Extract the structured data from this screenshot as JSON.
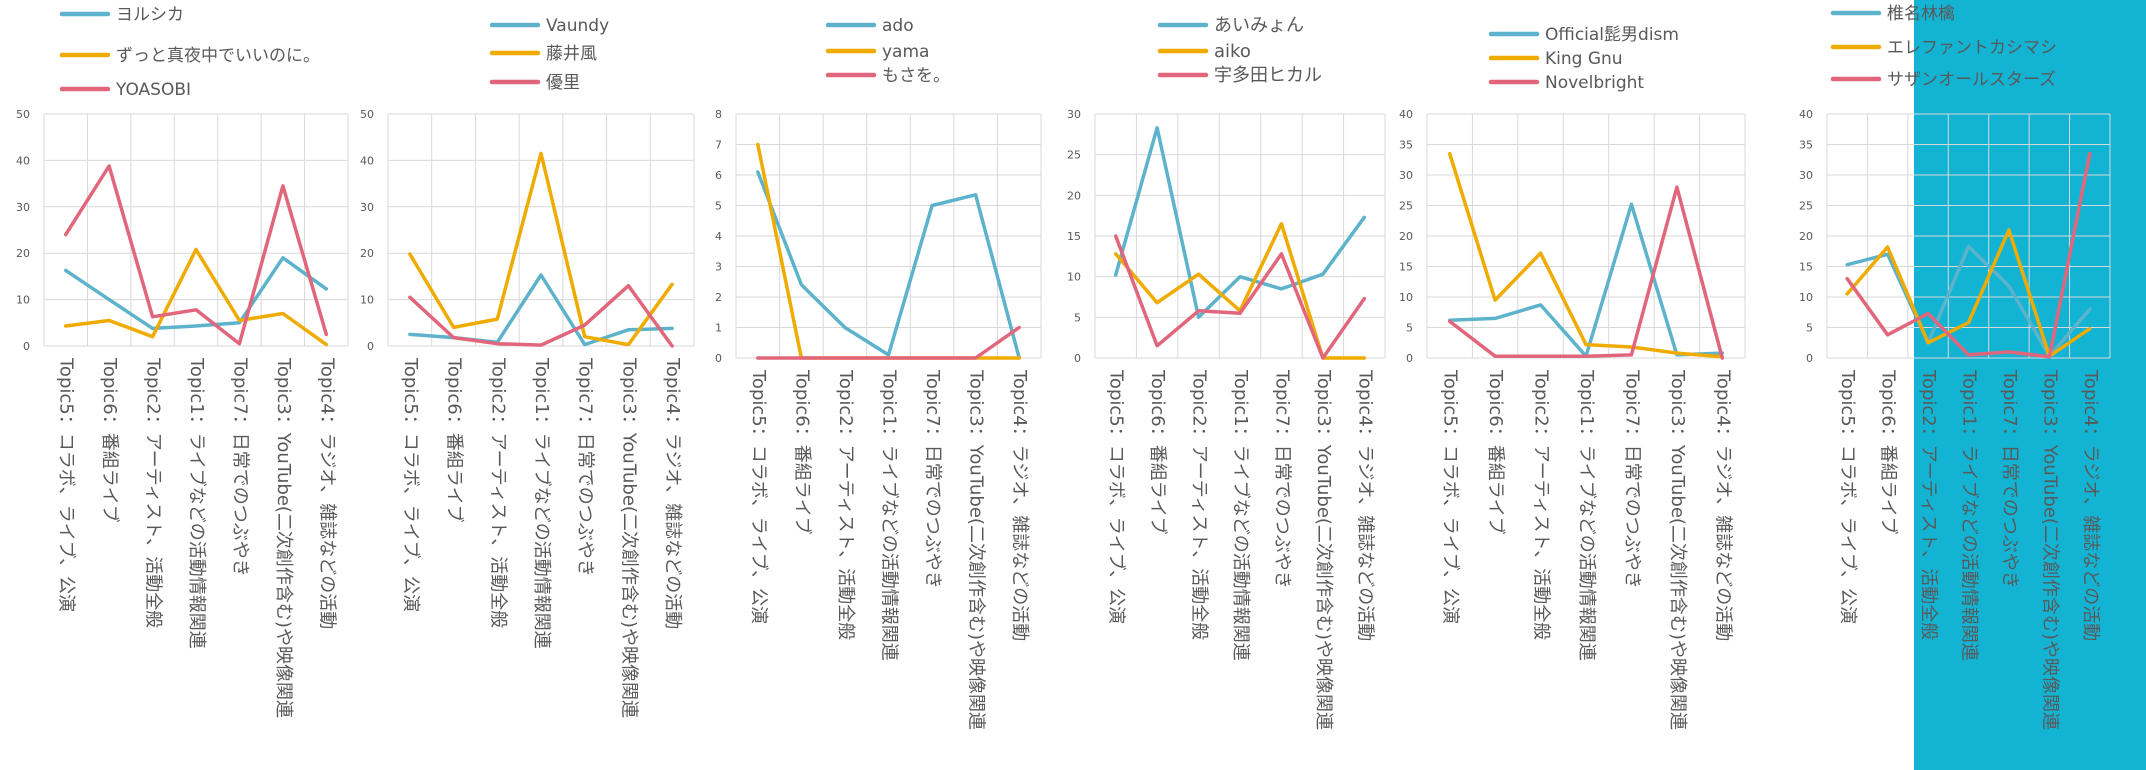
{
  "colors": {
    "blue": "#5cb3cb",
    "orange": "#f0ab00",
    "pink": "#e2667b",
    "grid": "#d9d9d9",
    "axis_text": "#595959",
    "legend_text": "#595959",
    "highlight": "#13b4d3"
  },
  "highlight": {
    "present": true,
    "color": "#13b4d3"
  },
  "chart_data": [
    {
      "type": "line",
      "categories": [
        "Topic5：コラボ、ライブ、公演",
        "Topic6：番組ライブ",
        "Topic2：アーティスト、活動全般",
        "Topic1：ライブなどの活動情報関連",
        "Topic7：日常でのつぶやき",
        "Topic3：YouTube(二次創作含む)や映像関連",
        "Topic4：ラジオ、雑誌などの活動"
      ],
      "ylim": [
        0,
        50
      ],
      "yticks": [
        "0",
        "10",
        "20",
        "30",
        "40",
        "50"
      ],
      "grid": true,
      "legend_position": "top",
      "series": [
        {
          "name": "ヨルシカ",
          "color": "blue",
          "values": [
            16.3,
            10,
            3.8,
            4.3,
            5,
            19,
            12.3
          ]
        },
        {
          "name": "ずっと真夜中でいいのに。",
          "color": "orange",
          "values": [
            4.3,
            5.5,
            2,
            20.8,
            5.5,
            7,
            0.3
          ]
        },
        {
          "name": "YOASOBI",
          "color": "pink",
          "values": [
            24,
            38.8,
            6.3,
            7.8,
            0.5,
            34.5,
            2.5
          ]
        }
      ]
    },
    {
      "type": "line",
      "categories": [
        "Topic5：コラボ、ライブ、公演",
        "Topic6：番組ライブ",
        "Topic2：アーティスト、活動全般",
        "Topic1：ライブなどの活動情報関連",
        "Topic7：日常でのつぶやき",
        "Topic3：YouTube(二次創作含む)や映像関連",
        "Topic4：ラジオ、雑誌などの活動"
      ],
      "ylim": [
        0,
        50
      ],
      "yticks": [
        "0",
        "10",
        "20",
        "30",
        "40",
        "50"
      ],
      "grid": true,
      "legend_position": "top",
      "series": [
        {
          "name": "Vaundy",
          "color": "blue",
          "values": [
            2.5,
            1.8,
            0.8,
            15.3,
            0.3,
            3.5,
            3.8
          ]
        },
        {
          "name": "藤井風",
          "color": "orange",
          "values": [
            19.8,
            4,
            5.8,
            41.5,
            2,
            0.3,
            13.3
          ]
        },
        {
          "name": "優里",
          "color": "pink",
          "values": [
            10.5,
            1.8,
            0.5,
            0.2,
            4.5,
            13,
            0
          ]
        }
      ]
    },
    {
      "type": "line",
      "categories": [
        "Topic5：コラボ、ライブ、公演",
        "Topic6：番組ライブ",
        "Topic2：アーティスト、活動全般",
        "Topic1：ライブなどの活動情報関連",
        "Topic7：日常でのつぶやき",
        "Topic3：YouTube(二次創作含む)や映像関連",
        "Topic4：ラジオ、雑誌などの活動"
      ],
      "ylim": [
        0,
        8
      ],
      "yticks": [
        "0",
        "1",
        "2",
        "3",
        "4",
        "5",
        "6",
        "7",
        "8"
      ],
      "grid": true,
      "legend_position": "top",
      "series": [
        {
          "name": "ado",
          "color": "blue",
          "values": [
            6.1,
            2.4,
            1,
            0.1,
            5,
            5.35,
            0
          ]
        },
        {
          "name": "yama",
          "color": "orange",
          "values": [
            7,
            0,
            0,
            0,
            0,
            0,
            0
          ]
        },
        {
          "name": "もさを。",
          "color": "pink",
          "values": [
            0,
            0,
            0,
            0,
            0,
            0,
            1
          ]
        }
      ]
    },
    {
      "type": "line",
      "categories": [
        "Topic5：コラボ、ライブ、公演",
        "Topic6：番組ライブ",
        "Topic2：アーティスト、活動全般",
        "Topic1：ライブなどの活動情報関連",
        "Topic7：日常でのつぶやき",
        "Topic3：YouTube(二次創作含む)や映像関連",
        "Topic4：ラジオ、雑誌などの活動"
      ],
      "ylim": [
        0,
        30
      ],
      "yticks": [
        "0",
        "5",
        "10",
        "15",
        "20",
        "25",
        "30"
      ],
      "grid": true,
      "legend_position": "top",
      "series": [
        {
          "name": "あいみょん",
          "color": "blue",
          "values": [
            10.2,
            28.3,
            5,
            10,
            8.5,
            10.3,
            17.3
          ]
        },
        {
          "name": "aiko",
          "color": "orange",
          "values": [
            12.8,
            6.8,
            10.3,
            5.8,
            16.5,
            0,
            0
          ]
        },
        {
          "name": "宇多田ヒカル",
          "color": "pink",
          "values": [
            15,
            1.5,
            5.8,
            5.5,
            12.8,
            0,
            7.3
          ]
        }
      ]
    },
    {
      "type": "line",
      "categories": [
        "Topic5：コラボ、ライブ、公演",
        "Topic6：番組ライブ",
        "Topic2：アーティスト、活動全般",
        "Topic1：ライブなどの活動情報関連",
        "Topic7：日常でのつぶやき",
        "Topic3：YouTube(二次創作含む)や映像関連",
        "Topic4：ラジオ、雑誌などの活動"
      ],
      "ylim": [
        0,
        40
      ],
      "yticks": [
        "0",
        "5",
        "10",
        "15",
        "20",
        "25",
        "30",
        "35",
        "40"
      ],
      "grid": true,
      "legend_position": "top",
      "series": [
        {
          "name": "Official髭男dism",
          "color": "blue",
          "values": [
            6.2,
            6.5,
            8.7,
            0.3,
            25.2,
            0.5,
            0.8
          ]
        },
        {
          "name": "King Gnu",
          "color": "orange",
          "values": [
            33.5,
            9.5,
            17.2,
            2.2,
            1.8,
            0.8,
            0.2
          ]
        },
        {
          "name": "Novelbright",
          "color": "pink",
          "values": [
            6,
            0.3,
            0.3,
            0.3,
            0.5,
            28,
            0
          ]
        }
      ]
    },
    {
      "type": "line",
      "categories": [
        "Topic5：コラボ、ライブ、公演",
        "Topic6：番組ライブ",
        "Topic2：アーティスト、活動全般",
        "Topic1：ライブなどの活動情報関連",
        "Topic7：日常でのつぶやき",
        "Topic3：YouTube(二次創作含む)や映像関連",
        "Topic4：ラジオ、雑誌などの活動"
      ],
      "ylim": [
        0,
        40
      ],
      "yticks": [
        "0",
        "5",
        "10",
        "15",
        "20",
        "25",
        "30",
        "35",
        "40"
      ],
      "grid": true,
      "legend_position": "top",
      "series": [
        {
          "name": "椎名林檎",
          "color": "blue",
          "values": [
            15.3,
            17,
            2.5,
            18.3,
            11.8,
            0.3,
            8
          ]
        },
        {
          "name": "エレファントカシマシ",
          "color": "orange",
          "values": [
            10.5,
            18.2,
            2.5,
            5.8,
            21,
            0.3,
            4.8
          ]
        },
        {
          "name": "サザンオールスターズ",
          "color": "pink",
          "values": [
            13,
            3.8,
            7.3,
            0.5,
            1,
            0.2,
            33.5
          ]
        }
      ]
    }
  ]
}
